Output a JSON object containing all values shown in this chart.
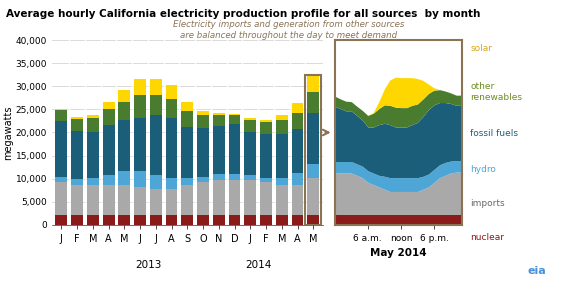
{
  "title": "Average hourly California electricity production profile for all sources  by month",
  "ylabel": "megawatts",
  "annotation": "Electricity imports and generation from other sources\nare balanced throughout the day to meet demand",
  "months": [
    "J",
    "F",
    "M",
    "A",
    "M",
    "J",
    "J",
    "A",
    "S",
    "O",
    "N",
    "D",
    "J",
    "F",
    "M",
    "A",
    "M"
  ],
  "years_label_2013": "2013",
  "years_label_2014": "2014",
  "bar_colors": {
    "nuclear": "#8B1A1A",
    "imports": "#A9A9A9",
    "hydro": "#4DA6D5",
    "fossil_fuels": "#1B5E7A",
    "other_renewables": "#4A7C2F",
    "solar": "#FFD700"
  },
  "legend_text_colors": {
    "solar": "#DAA520",
    "other renewables": "#6B8E23",
    "fossil fuels": "#1B5E7A",
    "hydro": "#4DA6D5",
    "imports": "#696969",
    "nuclear": "#8B1A1A"
  },
  "ylim": [
    0,
    40000
  ],
  "yticks": [
    0,
    5000,
    10000,
    15000,
    20000,
    25000,
    30000,
    35000,
    40000
  ],
  "bar_data": {
    "nuclear": [
      2200,
      2200,
      2200,
      2200,
      2200,
      2200,
      2200,
      2200,
      2200,
      2200,
      2200,
      2200,
      2200,
      2200,
      2200,
      2200,
      2200
    ],
    "imports": [
      7000,
      6500,
      6500,
      6500,
      6500,
      6000,
      5500,
      5500,
      6500,
      7000,
      7500,
      7500,
      7500,
      7000,
      6500,
      6500,
      8000
    ],
    "hydro": [
      1200,
      1200,
      1500,
      2000,
      3000,
      3500,
      3000,
      2500,
      1500,
      1200,
      1200,
      1200,
      1000,
      1000,
      1500,
      2500,
      3000
    ],
    "fossil_fuels": [
      12000,
      10500,
      10000,
      11000,
      11000,
      11500,
      13000,
      13000,
      11000,
      10500,
      10500,
      11000,
      9500,
      9500,
      9500,
      9500,
      11000
    ],
    "other_renewables": [
      2500,
      2500,
      3000,
      3500,
      4000,
      5000,
      4500,
      4000,
      3500,
      3000,
      2500,
      2000,
      2500,
      2500,
      3000,
      3500,
      4500
    ],
    "solar": [
      300,
      400,
      700,
      1500,
      2500,
      3500,
      3500,
      3000,
      2000,
      800,
      300,
      200,
      400,
      600,
      1200,
      2200,
      3500
    ]
  },
  "may2014_hours": [
    0,
    1,
    2,
    3,
    4,
    5,
    6,
    7,
    8,
    9,
    10,
    11,
    12,
    13,
    14,
    15,
    16,
    17,
    18,
    19,
    20,
    21,
    22,
    23
  ],
  "may2014_data": {
    "nuclear": [
      2200,
      2200,
      2200,
      2200,
      2200,
      2200,
      2200,
      2200,
      2200,
      2200,
      2200,
      2200,
      2200,
      2200,
      2200,
      2200,
      2200,
      2200,
      2200,
      2200,
      2200,
      2200,
      2200,
      2200
    ],
    "imports": [
      9000,
      9000,
      9000,
      9000,
      8500,
      8000,
      7000,
      6500,
      6000,
      5500,
      5000,
      5000,
      5000,
      5000,
      5000,
      5000,
      5500,
      6000,
      7000,
      8000,
      8500,
      9000,
      9200,
      9200
    ],
    "hydro": [
      2500,
      2500,
      2500,
      2500,
      2500,
      2500,
      2500,
      2500,
      2500,
      2800,
      3000,
      3000,
      3000,
      3000,
      3000,
      3000,
      2800,
      2800,
      2800,
      2800,
      2800,
      2600,
      2500,
      2500
    ],
    "fossil_fuels": [
      12000,
      11500,
      11000,
      11000,
      10500,
      10000,
      9500,
      10000,
      11000,
      11500,
      11500,
      11000,
      11000,
      11000,
      11500,
      12000,
      13000,
      14000,
      14000,
      13500,
      13000,
      12500,
      12000,
      12000
    ],
    "other_renewables": [
      2200,
      2100,
      2100,
      2000,
      2000,
      2100,
      2500,
      3000,
      3500,
      4000,
      4200,
      4300,
      4200,
      4200,
      4200,
      4000,
      3800,
      3500,
      3200,
      2800,
      2500,
      2300,
      2200,
      2200
    ],
    "solar": [
      0,
      0,
      0,
      0,
      0,
      0,
      0,
      200,
      1500,
      3500,
      5500,
      6500,
      6500,
      6500,
      6000,
      5500,
      4000,
      2000,
      500,
      0,
      0,
      0,
      0,
      0
    ]
  },
  "may2014_xticks": [
    6,
    12,
    18
  ],
  "may2014_xticklabels": [
    "6 a.m.",
    "noon",
    "6 p.m."
  ],
  "background_color": "#FFFFFF",
  "grid_color": "#CCCCCC",
  "border_color": "#8B7355"
}
